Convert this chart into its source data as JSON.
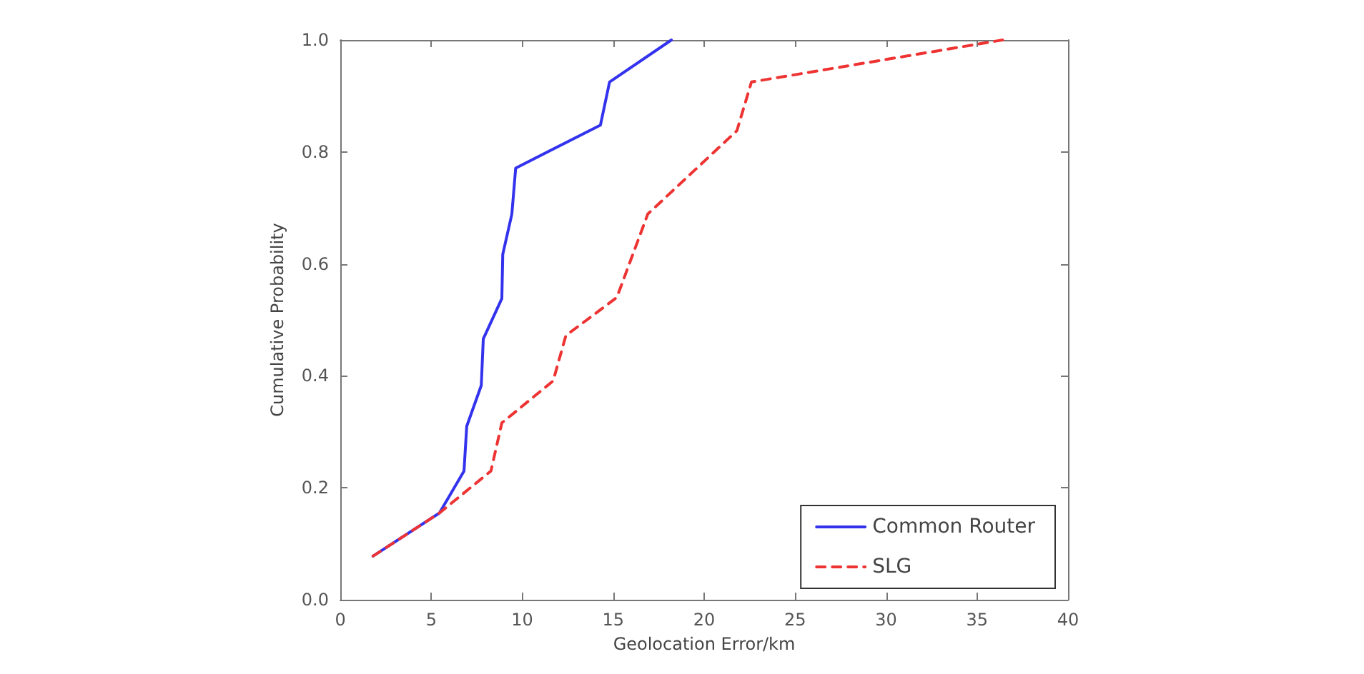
{
  "chart_data": {
    "type": "line",
    "xlabel": "Geolocation Error/km",
    "ylabel": "Cumulative Probability",
    "xlim": [
      0,
      40
    ],
    "xticks": [
      0,
      5,
      10,
      15,
      20,
      25,
      30,
      35,
      40
    ],
    "ylim": [
      0,
      1
    ],
    "yticks": [
      {
        "value": 0,
        "label": "0.0"
      },
      0.2,
      0.4,
      0.6,
      0.8,
      {
        "value": 1,
        "label": "1.0"
      }
    ],
    "grid": false,
    "legend": "bottom right",
    "marker": "none",
    "series": [
      {
        "name": "Common Router",
        "color": "#3333ee",
        "line_style": "solid",
        "x": [
          1.8,
          5.45,
          6.8,
          6.95,
          7.75,
          7.86,
          8.88,
          8.93,
          9.43,
          9.64,
          14.3,
          14.8,
          18.2
        ],
        "values": [
          0.078,
          0.155,
          0.23,
          0.31,
          0.383,
          0.466,
          0.538,
          0.617,
          0.689,
          0.771,
          0.848,
          0.925,
          1.0
        ]
      },
      {
        "name": "SLG",
        "color": "#ee3333",
        "line_style": "dashed",
        "x": [
          1.8,
          5.45,
          8.28,
          8.88,
          11.7,
          12.4,
          15.2,
          16.9,
          21.8,
          22.6,
          36.4
        ],
        "values": [
          0.078,
          0.155,
          0.23,
          0.316,
          0.391,
          0.472,
          0.54,
          0.689,
          0.838,
          0.925,
          1.0
        ]
      }
    ]
  }
}
